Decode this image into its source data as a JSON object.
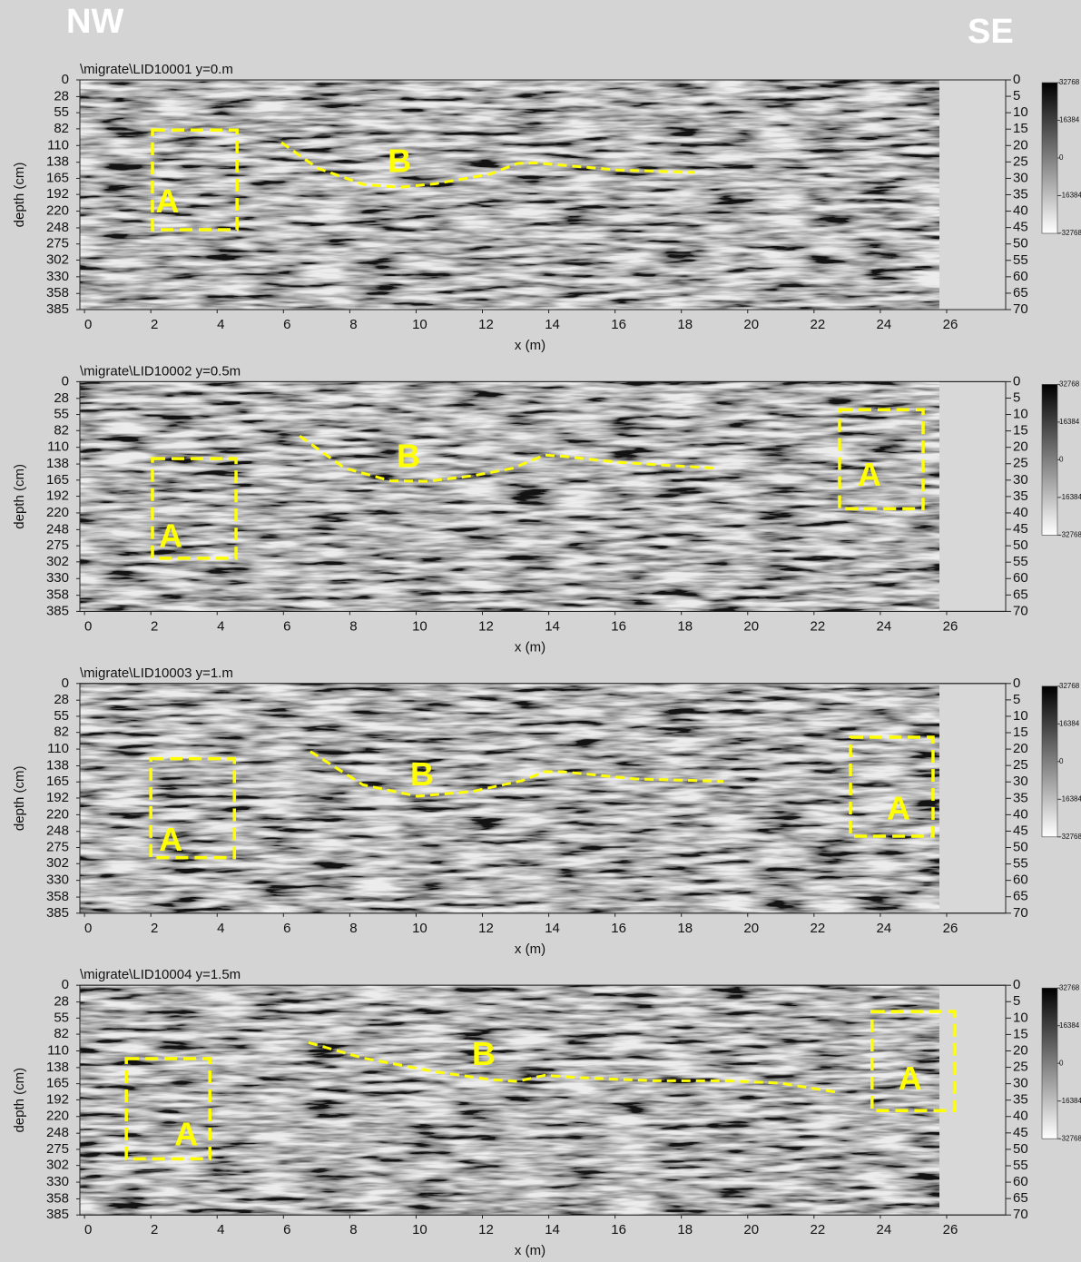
{
  "direction_labels": {
    "left": "NW",
    "right": "SE"
  },
  "chart_data": [
    {
      "type": "radargram",
      "title": "\\migrate\\LID10001   y=0.m",
      "xlabel": "x (m)",
      "ylabel": "depth (cm)",
      "xlim": [
        -0.14,
        27.78
      ],
      "xticks": [
        0,
        2,
        4,
        6,
        8,
        10,
        12,
        14,
        16,
        18,
        20,
        22,
        24,
        26
      ],
      "ylim": [
        0,
        385
      ],
      "yticks": [
        0,
        28,
        55,
        82,
        110,
        138,
        165,
        192,
        220,
        248,
        275,
        302,
        330,
        358,
        385
      ],
      "y2lim": [
        0,
        70
      ],
      "y2ticks": [
        0,
        5,
        10,
        15,
        20,
        25,
        30,
        35,
        40,
        45,
        50,
        55,
        60,
        65,
        70
      ],
      "colorbar": {
        "lim": [
          32768,
          -32768
        ],
        "ticks": [
          32768,
          16384,
          0,
          -16384,
          -32768
        ]
      },
      "boxes": [
        {
          "label": "A",
          "x": [
            2.05,
            4.6
          ],
          "depth": [
            84,
            251
          ],
          "label_x": 2.5,
          "label_depth": 208
        }
      ],
      "curves": [
        {
          "label": "B",
          "x": [
            5.94,
            7.03,
            8.4,
            9.5,
            10.59,
            12.23,
            13.05,
            13.6,
            16.07,
            18.39
          ],
          "depth": [
            105,
            148,
            175,
            180,
            174,
            158,
            140,
            139,
            151,
            155
          ],
          "label_x": 9.5,
          "label_depth": 140
        }
      ]
    },
    {
      "type": "radargram",
      "title": "\\migrate\\LID10002   y=0.5m",
      "xlabel": "x (m)",
      "ylabel": "depth (cm)",
      "xlim": [
        -0.14,
        27.78
      ],
      "xticks": [
        0,
        2,
        4,
        6,
        8,
        10,
        12,
        14,
        16,
        18,
        20,
        22,
        24,
        26
      ],
      "ylim": [
        0,
        385
      ],
      "yticks": [
        0,
        28,
        55,
        82,
        110,
        138,
        165,
        192,
        220,
        248,
        275,
        302,
        330,
        358,
        385
      ],
      "y2lim": [
        0,
        70
      ],
      "y2ticks": [
        0,
        5,
        10,
        15,
        20,
        25,
        30,
        35,
        40,
        45,
        50,
        55,
        60,
        65,
        70
      ],
      "colorbar": {
        "lim": [
          32768,
          -32768
        ],
        "ticks": [
          32768,
          16384,
          0,
          -16384,
          -32768
        ]
      },
      "boxes": [
        {
          "label": "A",
          "x": [
            2.05,
            4.57
          ],
          "depth": [
            129,
            296
          ],
          "label_x": 2.6,
          "label_depth": 263
        },
        {
          "label": "A",
          "x": [
            22.77,
            25.29
          ],
          "depth": [
            47,
            213
          ],
          "label_x": 23.67,
          "label_depth": 160
        }
      ],
      "curves": [
        {
          "label": "B",
          "x": [
            6.49,
            7.85,
            9.22,
            10.32,
            11.69,
            12.92,
            13.88,
            14.42,
            16.07,
            18.99
          ],
          "depth": [
            91,
            145,
            166,
            167,
            158,
            145,
            123,
            125,
            135,
            145
          ],
          "label_x": 9.77,
          "label_depth": 129
        }
      ]
    },
    {
      "type": "radargram",
      "title": "\\migrate\\LID10003   y=1.m",
      "xlabel": "x (m)",
      "ylabel": "depth (cm)",
      "xlim": [
        -0.14,
        27.78
      ],
      "xticks": [
        0,
        2,
        4,
        6,
        8,
        10,
        12,
        14,
        16,
        18,
        20,
        22,
        24,
        26
      ],
      "ylim": [
        0,
        385
      ],
      "yticks": [
        0,
        28,
        55,
        82,
        110,
        138,
        165,
        192,
        220,
        248,
        275,
        302,
        330,
        358,
        385
      ],
      "y2lim": [
        0,
        70
      ],
      "y2ticks": [
        0,
        5,
        10,
        15,
        20,
        25,
        30,
        35,
        40,
        45,
        50,
        55,
        60,
        65,
        70
      ],
      "colorbar": {
        "lim": [
          32768,
          -32768
        ],
        "ticks": [
          32768,
          16384,
          0,
          -16384,
          -32768
        ]
      },
      "boxes": [
        {
          "label": "A",
          "x": [
            2.0,
            4.52
          ],
          "depth": [
            126,
            292
          ],
          "label_x": 2.6,
          "label_depth": 266
        },
        {
          "label": "A",
          "x": [
            23.1,
            25.59
          ],
          "depth": [
            90,
            256
          ],
          "label_x": 24.55,
          "label_depth": 213
        }
      ],
      "curves": [
        {
          "label": "B",
          "x": [
            6.81,
            8.4,
            10.04,
            11.69,
            13.19,
            13.88,
            14.42,
            16.61,
            19.27
          ],
          "depth": [
            114,
            170,
            189,
            181,
            163,
            148,
            148,
            160,
            164
          ],
          "label_x": 10.18,
          "label_depth": 156
        }
      ]
    },
    {
      "type": "radargram",
      "title": "\\migrate\\LID10004   y=1.5m",
      "xlabel": "x (m)",
      "ylabel": "depth (cm)",
      "xlim": [
        -0.14,
        27.78
      ],
      "xticks": [
        0,
        2,
        4,
        6,
        8,
        10,
        12,
        14,
        16,
        18,
        20,
        22,
        24,
        26
      ],
      "ylim": [
        0,
        385
      ],
      "yticks": [
        0,
        28,
        55,
        82,
        110,
        138,
        165,
        192,
        220,
        248,
        275,
        302,
        330,
        358,
        385
      ],
      "y2lim": [
        0,
        70
      ],
      "y2ticks": [
        0,
        5,
        10,
        15,
        20,
        25,
        30,
        35,
        40,
        45,
        50,
        55,
        60,
        65,
        70
      ],
      "colorbar": {
        "lim": [
          32768,
          -32768
        ],
        "ticks": [
          32768,
          16384,
          0,
          -16384,
          -32768
        ]
      },
      "boxes": [
        {
          "label": "A",
          "x": [
            1.26,
            3.78
          ],
          "depth": [
            123,
            291
          ],
          "label_x": 3.07,
          "label_depth": 254
        },
        {
          "label": "A",
          "x": [
            23.75,
            26.25
          ],
          "depth": [
            44,
            210
          ],
          "label_x": 24.9,
          "label_depth": 160
        }
      ],
      "curves": [
        {
          "label": "B",
          "x": [
            6.76,
            8.4,
            10.59,
            12.23,
            13.05,
            13.88,
            14.97,
            17.16,
            19.35,
            20.99,
            22.77
          ],
          "depth": [
            96,
            122,
            145,
            158,
            161,
            151,
            155,
            160,
            160,
            164,
            180
          ],
          "label_x": 12.04,
          "label_depth": 119
        }
      ]
    }
  ]
}
